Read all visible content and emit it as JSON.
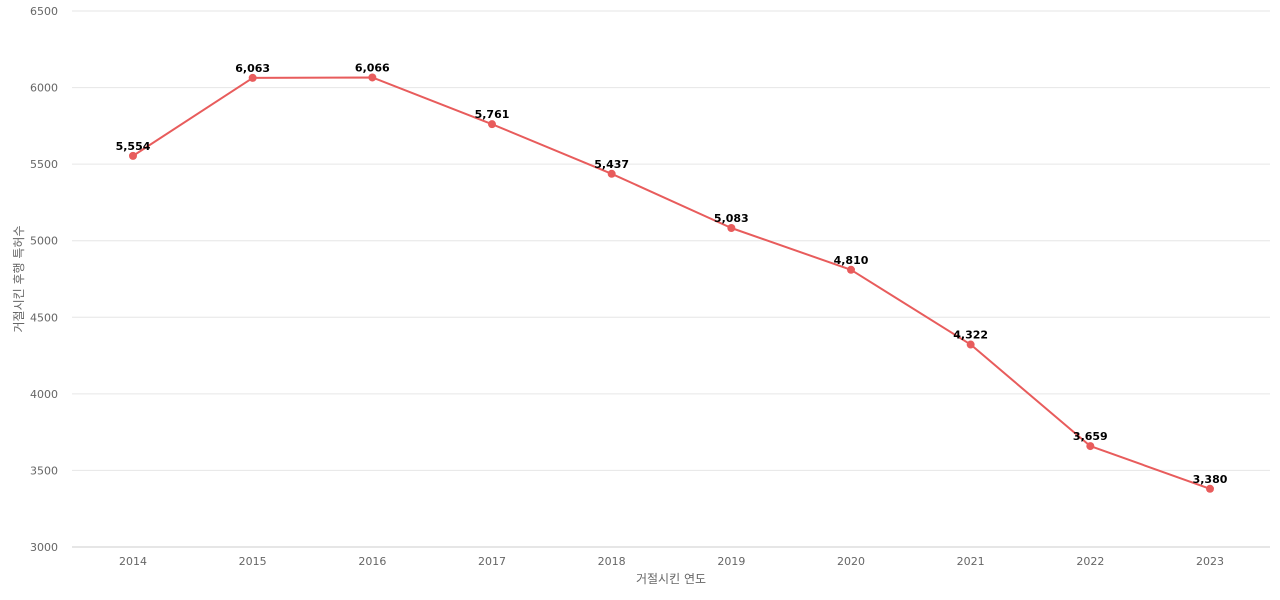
{
  "chart_data": {
    "type": "line",
    "title": "",
    "xlabel": "거절시킨 연도",
    "ylabel": "거절시킨 후행 특허수",
    "x": [
      "2014",
      "2015",
      "2016",
      "2017",
      "2018",
      "2019",
      "2020",
      "2021",
      "2022",
      "2023"
    ],
    "series": [
      {
        "values": [
          5554,
          6063,
          6066,
          5761,
          5437,
          5083,
          4810,
          4322,
          3659,
          3380
        ],
        "data_labels": [
          "5,554",
          "6,063",
          "6,066",
          "5,761",
          "5,437",
          "5,083",
          "4,810",
          "4,322",
          "3,659",
          "3,380"
        ],
        "color": "#e85c5c"
      }
    ],
    "ylim": [
      3000,
      6500
    ],
    "yticks": [
      3000,
      3500,
      4000,
      4500,
      5000,
      5500,
      6000,
      6500
    ],
    "grid": true,
    "legend": "none"
  }
}
